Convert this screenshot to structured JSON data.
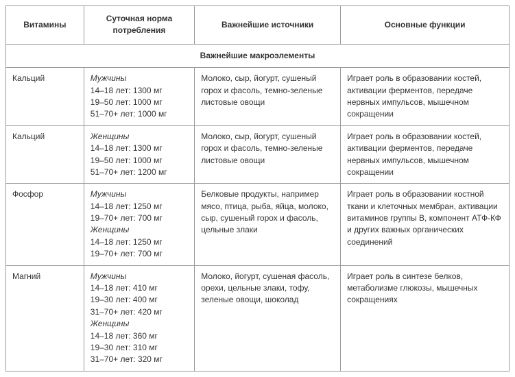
{
  "headers": {
    "c0": "Витамины",
    "c1": "Суточная норма потребления",
    "c2": "Важнейшие источники",
    "c3": "Основные функции"
  },
  "section_title": "Важнейшие макроэлементы",
  "rows": [
    {
      "name": "Кальций",
      "dose": {
        "g1_label": "Мужчины",
        "g1_l1": "14–18 лет: 1300 мг",
        "g1_l2": "19–50 лет: 1000 мг",
        "g1_l3": "51–70+ лет: 1000 мг"
      },
      "sources": "Молоко, сыр, йогурт, сушеный горох и фасоль, темно-зеленые листовые овощи",
      "functions": "Играет роль в образовании костей, активации ферментов, передаче нервных импульсов, мышечном сокращении"
    },
    {
      "name": "Кальций",
      "dose": {
        "g1_label": "Женщины",
        "g1_l1": "14–18 лет: 1300 мг",
        "g1_l2": "19–50 лет: 1000 мг",
        "g1_l3": "51–70+ лет: 1200 мг"
      },
      "sources": "Молоко, сыр, йогурт, сушеный горох и фасоль, темно-зеленые листовые овощи",
      "functions": "Играет роль в образовании костей, активации ферментов, передаче нервных импульсов, мышечном сокращении"
    },
    {
      "name": "Фосфор",
      "dose": {
        "g1_label": "Мужчины",
        "g1_l1": "14–18 лет: 1250 мг",
        "g1_l2": "19–70+ лет: 700 мг",
        "g2_label": "Женщины",
        "g2_l1": "14–18 лет: 1250 мг",
        "g2_l2": "19–70+ лет: 700 мг"
      },
      "sources": "Белковые продукты, например мясо, птица, рыба, яйца, молоко, сыр, сушеный горох и фасоль, цельные злаки",
      "functions": "Играет роль в образовании костной ткани и клеточных мембран, активации витаминов группы В, компонент АТФ-КФ и других важных органических соединений"
    },
    {
      "name": "Магний",
      "dose": {
        "g1_label": "Мужчины",
        "g1_l1": "14–18 лет: 410 мг",
        "g1_l2": "19–30 лет: 400 мг",
        "g1_l3": "31–70+ лет: 420 мг",
        "g2_label": "Женщины",
        "g2_l1": "14–18 лет: 360 мг",
        "g2_l2": "19–30 лет: 310 мг",
        "g2_l3": "31–70+ лет: 320 мг"
      },
      "sources": "Молоко, йогурт, сушеная фасоль, орехи, цельные злаки, тофу, зеленые овощи, шоколад",
      "functions": "Играет роль в синтезе белков, метаболизме глюкозы, мышечных сокращениях"
    }
  ]
}
